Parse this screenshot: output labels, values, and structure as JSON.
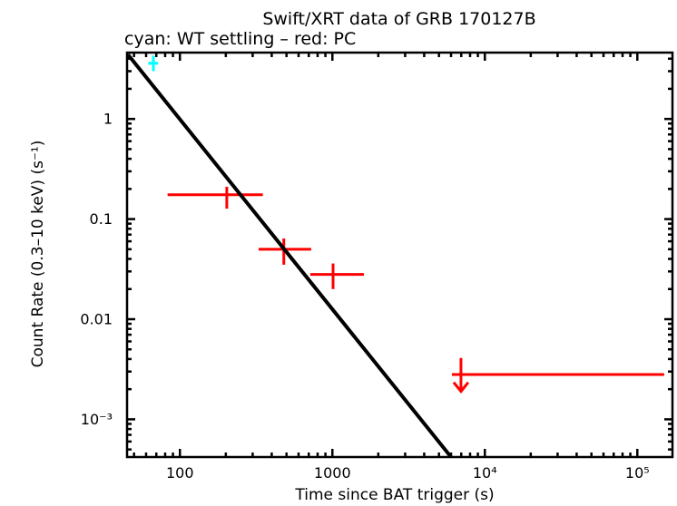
{
  "window": {
    "background": "#ffffff"
  },
  "chart_data": {
    "type": "scatter",
    "title": "Swift/XRT data of GRB 170127B",
    "subtitle": "cyan: WT settling – red: PC",
    "xlabel": "Time since BAT trigger (s)",
    "ylabel": "Count Rate (0.3–10 keV) (s⁻¹)",
    "xscale": "log",
    "yscale": "log",
    "xlim": [
      45,
      170000
    ],
    "ylim": [
      0.00042,
      4.6
    ],
    "grid": false,
    "legend_position": "none",
    "frame_color": "#000000",
    "x_ticks": [
      {
        "v": 100,
        "label": "100"
      },
      {
        "v": 1000,
        "label": "1000"
      },
      {
        "v": 10000,
        "label": "10⁴"
      },
      {
        "v": 100000,
        "label": "10⁵"
      }
    ],
    "y_ticks": [
      {
        "v": 1,
        "label": "1"
      },
      {
        "v": 0.1,
        "label": "0.1"
      },
      {
        "v": 0.01,
        "label": "0.01"
      },
      {
        "v": 0.001,
        "label": "10⁻³"
      }
    ],
    "series": [
      {
        "name": "WT settling",
        "color": "#00ffff",
        "marker": "cross-errorbar",
        "points": [
          {
            "t": 67,
            "t_lo": 62,
            "t_hi": 72,
            "rate": 3.6,
            "rate_lo": 3.0,
            "rate_hi": 4.3,
            "upper_limit": false
          }
        ]
      },
      {
        "name": "PC",
        "color": "#ff0000",
        "marker": "cross-errorbar",
        "points": [
          {
            "t": 203,
            "t_lo": 83,
            "t_hi": 350,
            "rate": 0.175,
            "rate_lo": 0.127,
            "rate_hi": 0.21,
            "upper_limit": false
          },
          {
            "t": 480,
            "t_lo": 328,
            "t_hi": 726,
            "rate": 0.05,
            "rate_lo": 0.035,
            "rate_hi": 0.064,
            "upper_limit": false
          },
          {
            "t": 1010,
            "t_lo": 716,
            "t_hi": 1610,
            "rate": 0.028,
            "rate_lo": 0.02,
            "rate_hi": 0.036,
            "upper_limit": false
          },
          {
            "t": 6970,
            "t_lo": 6080,
            "t_hi": 150000,
            "rate": 0.0028,
            "rate_lo": 0.0019,
            "rate_hi": 0.0041,
            "upper_limit": true
          }
        ]
      }
    ],
    "model_line": {
      "name": "power-law fit",
      "color": "#000000",
      "slope": -1.9,
      "points": [
        {
          "t": 45.6,
          "rate": 4.4
        },
        {
          "t": 6000,
          "rate": 0.00042
        }
      ]
    }
  }
}
